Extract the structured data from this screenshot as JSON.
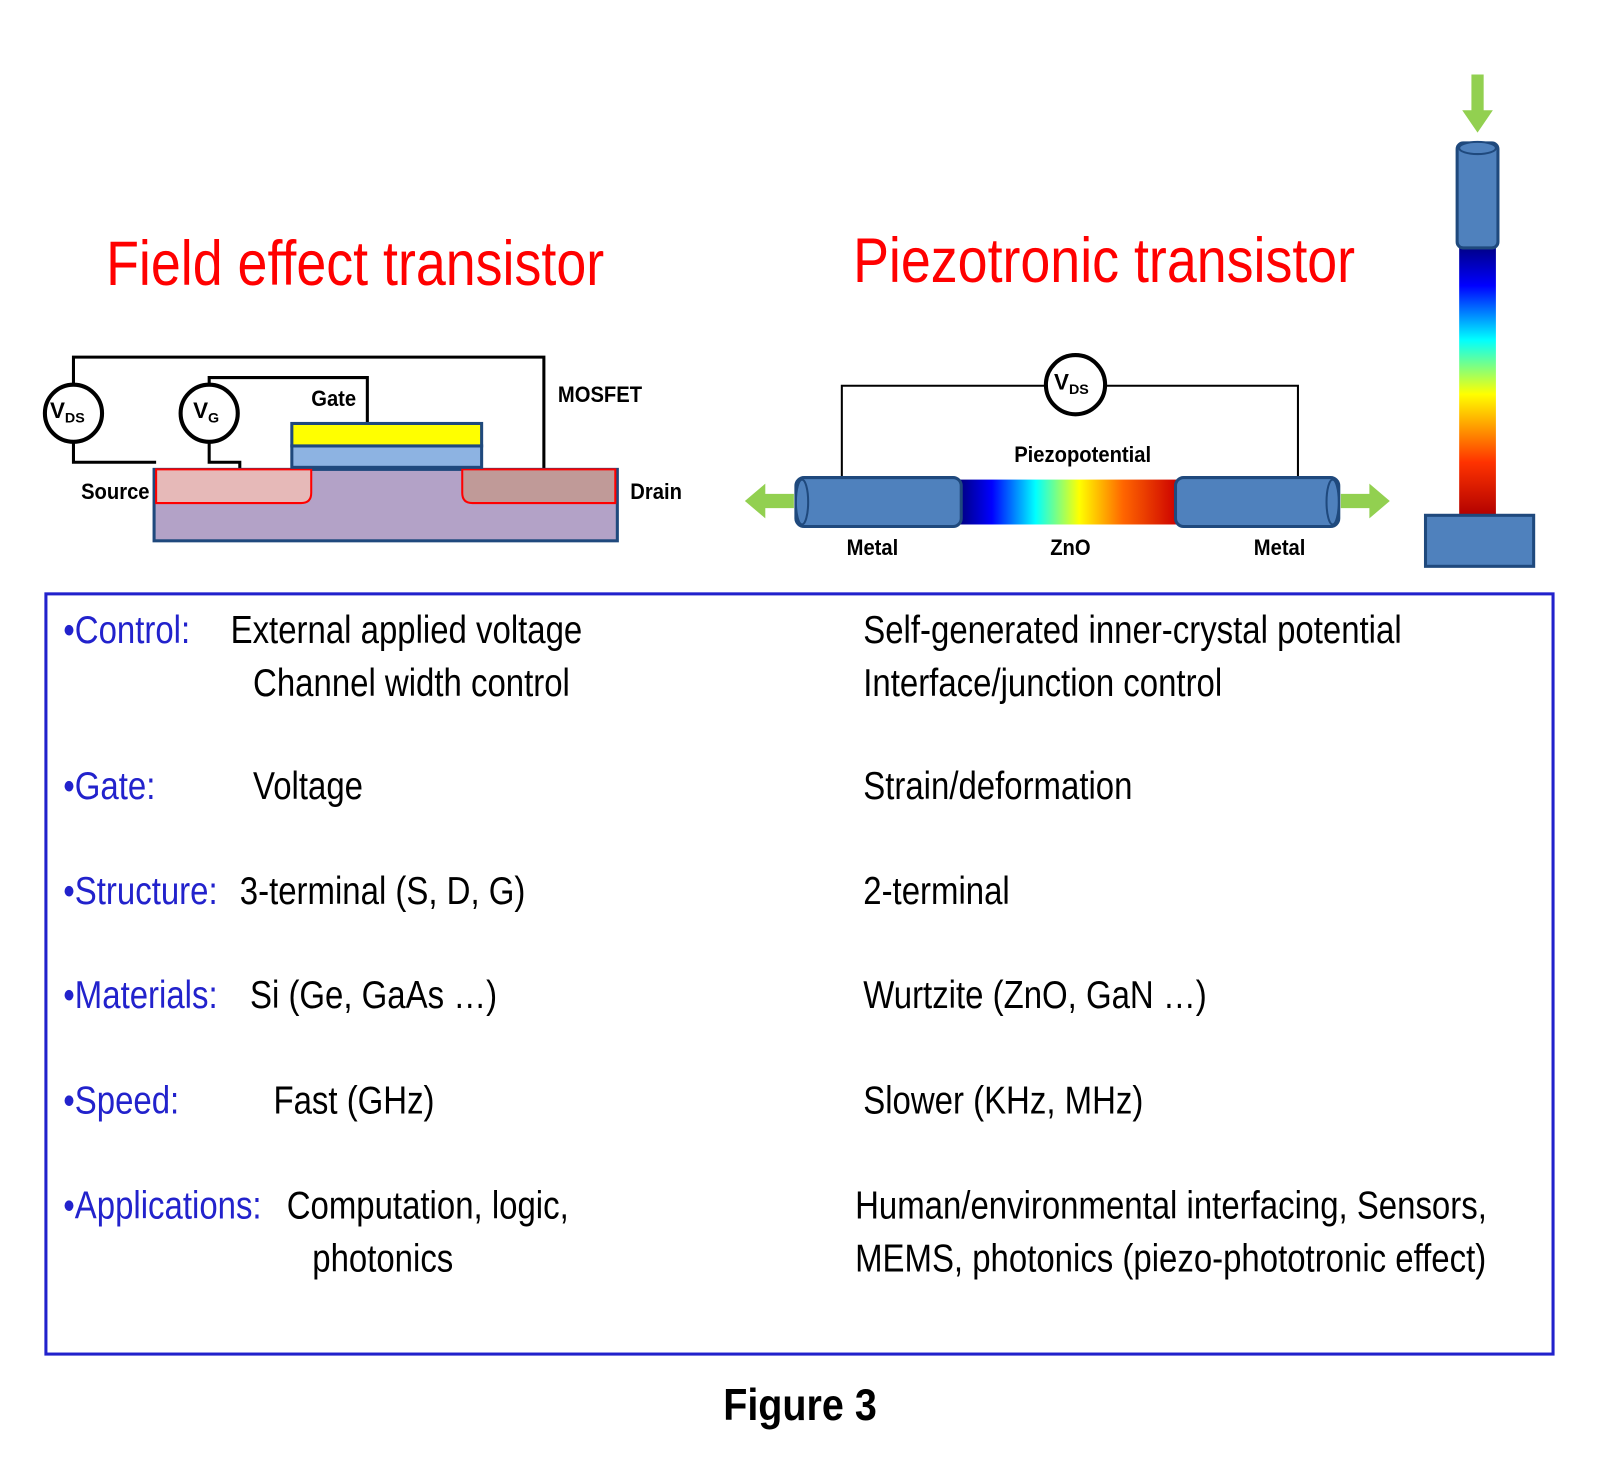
{
  "titles": {
    "fet": "Field effect transistor",
    "piezo": "Piezotronic transistor"
  },
  "fet_diagram": {
    "vds": {
      "main": "V",
      "sub": "DS"
    },
    "vg": {
      "main": "V",
      "sub": "G"
    },
    "gate": "Gate",
    "mosfet": "MOSFET",
    "source": "Source",
    "drain": "Drain"
  },
  "piezo_diagram": {
    "vds": {
      "main": "V",
      "sub": "DS"
    },
    "piezopotential": "Piezopotential",
    "metal_left": "Metal",
    "zno": "ZnO",
    "metal_right": "Metal"
  },
  "table": {
    "rows": [
      {
        "label": "•Control:",
        "fet": [
          "External applied voltage",
          "Channel width control"
        ],
        "piezo": [
          "Self-generated inner-crystal potential",
          "Interface/junction control"
        ]
      },
      {
        "label": "•Gate:",
        "fet": [
          "Voltage"
        ],
        "piezo": [
          "Strain/deformation"
        ]
      },
      {
        "label": "•Structure:",
        "fet": [
          "3-terminal (S, D, G)"
        ],
        "piezo": [
          "2-terminal"
        ]
      },
      {
        "label": "•Materials:",
        "fet": [
          "Si (Ge, GaAs …)"
        ],
        "piezo": [
          "Wurtzite (ZnO, GaN …)"
        ]
      },
      {
        "label": "•Speed:",
        "fet": [
          "Fast (GHz)"
        ],
        "piezo": [
          "Slower (KHz, MHz)"
        ]
      },
      {
        "label": "•Applications:",
        "fet": [
          "Computation, logic,",
          "photonics"
        ],
        "piezo": [
          "Human/environmental interfacing, Sensors,",
          "MEMS, photonics (piezo-phototronic effect)"
        ]
      }
    ]
  },
  "caption": "Figure 3"
}
